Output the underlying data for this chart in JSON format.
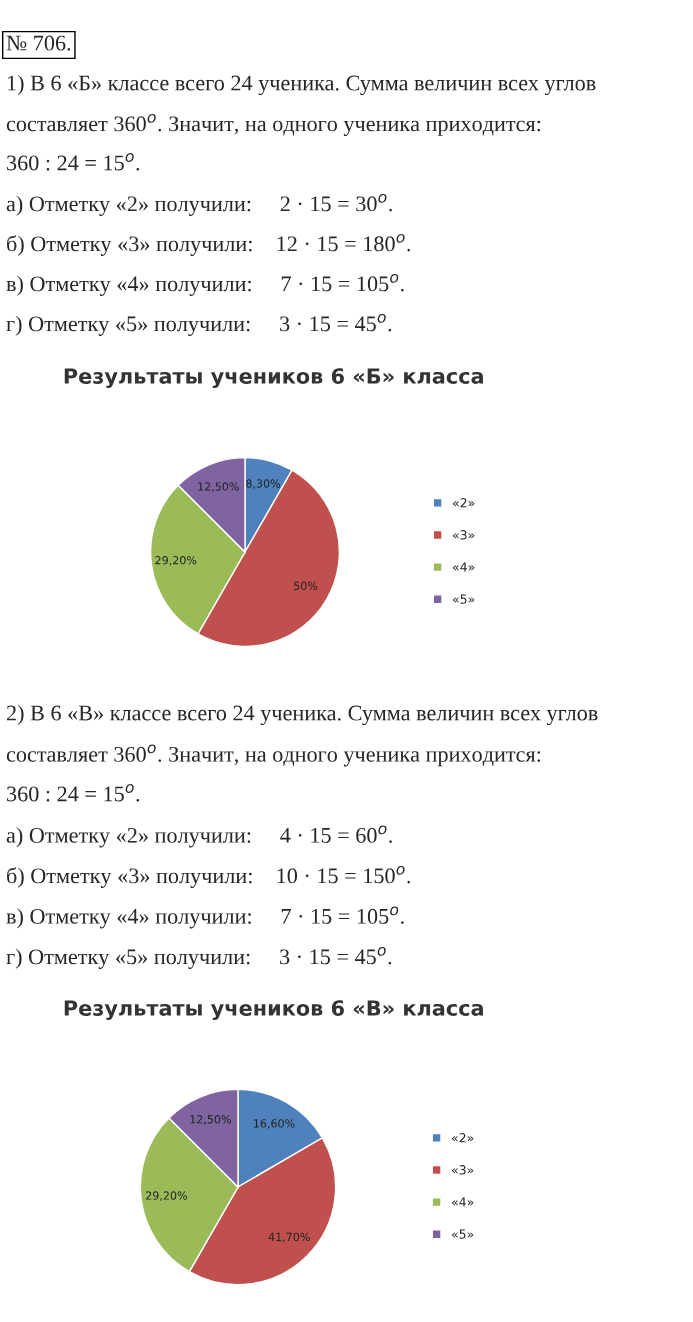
{
  "chart_data": [
    {
      "type": "pie",
      "title": "Результаты учеников 6 «Б» класса",
      "categories": [
        "«2»",
        "«3»",
        "«4»",
        "«5»"
      ],
      "values": [
        8.3,
        50,
        29.2,
        12.5
      ],
      "value_labels": [
        "8,30%",
        "50%",
        "29,20%",
        "12,50%"
      ],
      "colors": [
        "#4f81bd",
        "#c0504d",
        "#9bbb59",
        "#8064a2"
      ],
      "legend": "right",
      "annotations": [
        "№ 706.",
        "1) В 6 «Б» классе всего 24 ученика. Сумма величин всех углов",
        "составляет 360$^{o}$. Значит, на одного ученика приходится:",
        "360 : 24 = 15$^{o}$.",
        "а) Отметку «2» получили:     2 · 15 = 30$^{o}$.",
        "б) Отметку «3» получили:    12 · 15 = 180$^{o}$.",
        "в) Отметку «4» получили:     7 · 15 = 105$^{o}$.",
        "г) Отметку «5» получили:     3 · 15 = 45$^{o}$."
      ]
    },
    {
      "type": "pie",
      "title": "Результаты учеников 6 «В» класса",
      "categories": [
        "«2»",
        "«3»",
        "«4»",
        "«5»"
      ],
      "values": [
        16.6,
        41.7,
        29.2,
        12.5
      ],
      "value_labels": [
        "16,60%",
        "41,70%",
        "29,20%",
        "12,50%"
      ],
      "colors": [
        "#4f81bd",
        "#c0504d",
        "#9bbb59",
        "#8064a2"
      ],
      "legend": "right",
      "annotations": [
        "2) В 6 «В» классе всего 24 ученика. Сумма величин всех углов",
        "составляет 360$^{o}$. Значит, на одного ученика приходится:",
        "360 : 24 = 15$^{o}$.",
        "а) Отметку «2» получили:     4 · 15 = 60$^{o}$.",
        "б) Отметку «3» получили:    10 · 15 = 150$^{o}$.",
        "в) Отметку «4» получили:     7 · 15 = 105$^{o}$.",
        "г) Отметку «5» получили:     3 · 15 = 45$^{o}$."
      ]
    }
  ]
}
